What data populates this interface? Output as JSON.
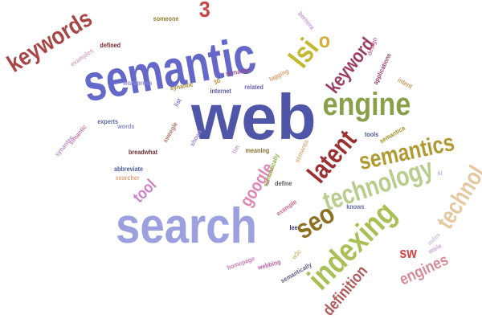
{
  "word_cloud": {
    "words": [
      {
        "text": "web",
        "color": "#4f56a8"
      },
      {
        "text": "semantic",
        "color": "#6468c8"
      },
      {
        "text": "search",
        "color": "#9da0e0"
      },
      {
        "text": "technology",
        "color": "#b8cc8c"
      },
      {
        "text": "engine",
        "color": "#8aa048"
      },
      {
        "text": "indexing",
        "color": "#a8c056"
      },
      {
        "text": "semantics",
        "color": "#b09a32"
      },
      {
        "text": "latent",
        "color": "#9a3030"
      },
      {
        "text": "keywords",
        "color": "#a84646"
      },
      {
        "text": "keyword",
        "color": "#9a3c64"
      },
      {
        "text": "lsi",
        "color": "#c2b832"
      },
      {
        "text": "o",
        "color": "#d2ae3a"
      },
      {
        "text": "3",
        "color": "#c84848"
      },
      {
        "text": "seo",
        "color": "#8c7020"
      },
      {
        "text": "google",
        "color": "#dd86b4"
      },
      {
        "text": "tool",
        "color": "#cc82c4"
      },
      {
        "text": "technol",
        "color": "#e6c8a0"
      },
      {
        "text": "engines",
        "color": "#d68c98"
      },
      {
        "text": "definition",
        "color": "#b05a5a"
      },
      {
        "text": "sw",
        "color": "#d64848"
      },
      {
        "text": "someone",
        "color": "#8a8030"
      },
      {
        "text": "defined",
        "color": "#7a2424"
      },
      {
        "text": "examples",
        "color": "#d6a8c8"
      },
      {
        "text": "bernera",
        "color": "#c89ad6"
      },
      {
        "text": "design",
        "color": "#c878a0"
      },
      {
        "text": "applications",
        "color": "#9a4070"
      },
      {
        "text": "intent",
        "color": "#c89a58"
      },
      {
        "text": "wordpress",
        "color": "#8a8ad6"
      },
      {
        "text": "synantic",
        "color": "#a08c3c"
      },
      {
        "text": "30",
        "color": "#c88c30"
      },
      {
        "text": "tagging",
        "color": "#dfa070"
      },
      {
        "text": "semantic",
        "color": "#9a5090"
      },
      {
        "text": "internet",
        "color": "#5a5a9a"
      },
      {
        "text": "related",
        "color": "#6a60b0"
      },
      {
        "text": "list",
        "color": "#7a7ac8"
      },
      {
        "text": "experts",
        "color": "#5a64a0"
      },
      {
        "text": "words",
        "color": "#8c90d0"
      },
      {
        "text": "simantic",
        "color": "#d07aa8"
      },
      {
        "text": "synantec",
        "color": "#b890d0"
      },
      {
        "text": "sweegle",
        "color": "#b07868"
      },
      {
        "text": "shows",
        "color": "#9a8ad0"
      },
      {
        "text": "breadwhat",
        "color": "#6a3030"
      },
      {
        "text": "tim",
        "color": "#c8a0d6"
      },
      {
        "text": "meaning",
        "color": "#8a7030"
      },
      {
        "text": "semantic",
        "color": "#e0b080"
      },
      {
        "text": "tools",
        "color": "#4a5a8a"
      },
      {
        "text": "semantica",
        "color": "#a09020"
      },
      {
        "text": "abbreviate",
        "color": "#4a5a9a"
      },
      {
        "text": "searcher",
        "color": "#e0a880"
      },
      {
        "text": "semantically",
        "color": "#8ab048"
      },
      {
        "text": "define",
        "color": "#5a5a5a"
      },
      {
        "text": "example",
        "color": "#d06888"
      },
      {
        "text": "knows",
        "color": "#6a6ab0"
      },
      {
        "text": "lee",
        "color": "#3a3a8a"
      },
      {
        "text": "w3c",
        "color": "#c8c078"
      },
      {
        "text": "webbing",
        "color": "#c060a8"
      },
      {
        "text": "homepage",
        "color": "#d080b8"
      },
      {
        "text": "semantically",
        "color": "#6a5a8a"
      },
      {
        "text": "si",
        "color": "#b0b8e0"
      },
      {
        "text": "index",
        "color": "#d0c0e0"
      },
      {
        "text": "wiele",
        "color": "#c8a8d8"
      }
    ]
  }
}
